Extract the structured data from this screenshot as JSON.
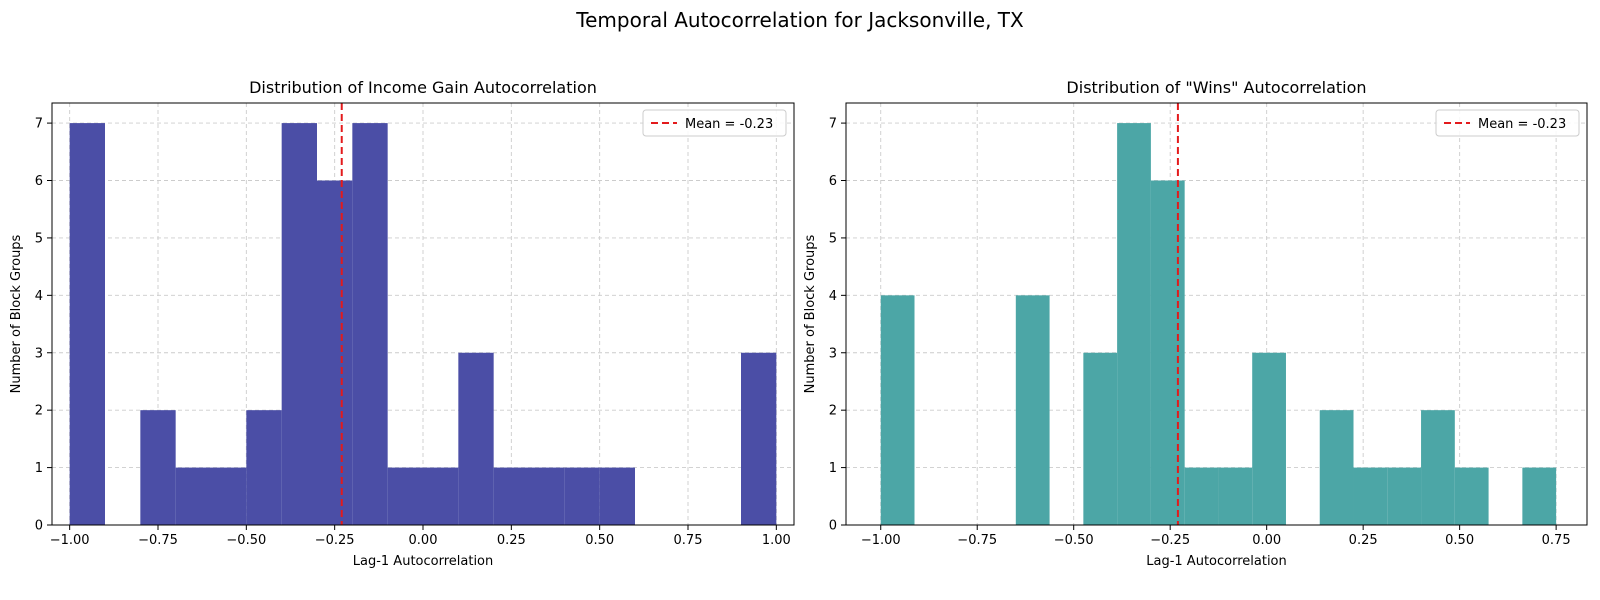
{
  "figure": {
    "title": "Temporal Autocorrelation for Jacksonville, TX"
  },
  "chart_data": [
    {
      "type": "bar",
      "subtype": "histogram",
      "title": "Distribution of Income Gain Autocorrelation",
      "xlabel": "Lag-1 Autocorrelation",
      "ylabel": "Number of Block Groups",
      "xlim": [
        -1.05,
        1.05
      ],
      "ylim": [
        0,
        7.35
      ],
      "xticks": [
        -1.0,
        -0.75,
        -0.5,
        -0.25,
        0.0,
        0.25,
        0.5,
        0.75,
        1.0
      ],
      "xtick_labels": [
        "−1.00",
        "−0.75",
        "−0.50",
        "−0.25",
        "0.00",
        "0.25",
        "0.50",
        "0.75",
        "1.00"
      ],
      "yticks": [
        0,
        1,
        2,
        3,
        4,
        5,
        6,
        7
      ],
      "ytick_labels": [
        "0",
        "1",
        "2",
        "3",
        "4",
        "5",
        "6",
        "7"
      ],
      "bin_edges": [
        -1.0,
        -0.9,
        -0.8,
        -0.7,
        -0.6,
        -0.5,
        -0.4,
        -0.3,
        -0.2,
        -0.1,
        0.0,
        0.1,
        0.2,
        0.3,
        0.4,
        0.5,
        0.6,
        0.7,
        0.8,
        0.9,
        1.0
      ],
      "counts": [
        7,
        0,
        2,
        1,
        1,
        2,
        7,
        6,
        7,
        1,
        1,
        3,
        1,
        1,
        1,
        1,
        0,
        0,
        0,
        3
      ],
      "bar_color": "#4b4ea6",
      "mean_line": {
        "value": -0.23,
        "label": "Mean = -0.23",
        "color": "#e31a1c"
      },
      "legend_position": "upper right",
      "grid": true
    },
    {
      "type": "bar",
      "subtype": "histogram",
      "title": "Distribution of \"Wins\" Autocorrelation",
      "xlabel": "Lag-1 Autocorrelation",
      "ylabel": "Number of Block Groups",
      "xlim": [
        -1.09,
        0.83
      ],
      "ylim": [
        0,
        7.35
      ],
      "xticks": [
        -1.0,
        -0.75,
        -0.5,
        -0.25,
        0.0,
        0.25,
        0.5,
        0.75
      ],
      "xtick_labels": [
        "−1.00",
        "−0.75",
        "−0.50",
        "−0.25",
        "0.00",
        "0.25",
        "0.50",
        "0.75"
      ],
      "yticks": [
        0,
        1,
        2,
        3,
        4,
        5,
        6,
        7
      ],
      "ytick_labels": [
        "0",
        "1",
        "2",
        "3",
        "4",
        "5",
        "6",
        "7"
      ],
      "bin_edges": [
        -1.0,
        -0.9125,
        -0.825,
        -0.7375,
        -0.65,
        -0.5625,
        -0.475,
        -0.3875,
        -0.3,
        -0.2125,
        -0.125,
        -0.0375,
        0.05,
        0.1375,
        0.225,
        0.3125,
        0.4,
        0.4875,
        0.575,
        0.6625,
        0.75
      ],
      "counts": [
        4,
        0,
        0,
        0,
        4,
        0,
        3,
        7,
        6,
        1,
        1,
        3,
        0,
        2,
        1,
        1,
        2,
        1,
        0,
        1
      ],
      "bar_color": "#4ca6a6",
      "mean_line": {
        "value": -0.23,
        "label": "Mean = -0.23",
        "color": "#e31a1c"
      },
      "legend_position": "upper right",
      "grid": true
    }
  ]
}
